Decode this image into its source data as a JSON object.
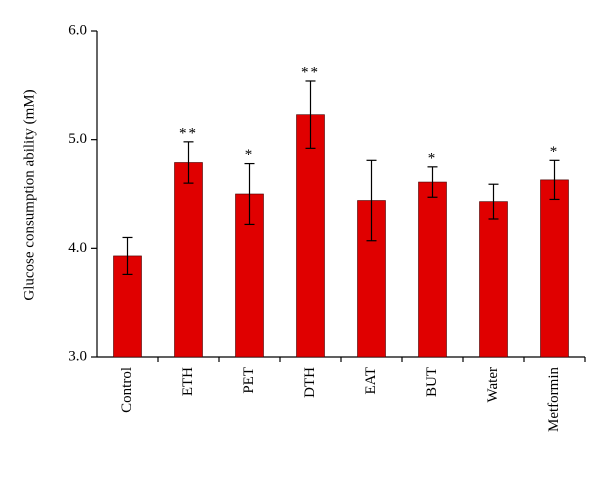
{
  "chart_data": {
    "type": "bar",
    "y_label": "Glucose consumption ability (mM)",
    "categories": [
      "Control",
      "ETH",
      "PET",
      "DTH",
      "EAT",
      "BUT",
      "Water",
      "Metformin"
    ],
    "values": [
      3.93,
      4.79,
      4.5,
      5.23,
      4.44,
      4.61,
      4.43,
      4.63
    ],
    "errors": [
      0.17,
      0.19,
      0.28,
      0.31,
      0.37,
      0.14,
      0.16,
      0.18
    ],
    "annotations": [
      null,
      "**",
      "*",
      "**",
      null,
      "*",
      null,
      "*"
    ],
    "color": "#e00000",
    "ylim": [
      3.0,
      6.0
    ],
    "yticks": [
      {
        "value": 3,
        "label": "3.0"
      },
      {
        "value": 4,
        "label": "4.0"
      },
      {
        "value": 5,
        "label": "5.0"
      },
      {
        "value": 6,
        "label": "6.0"
      }
    ],
    "grid": false
  }
}
